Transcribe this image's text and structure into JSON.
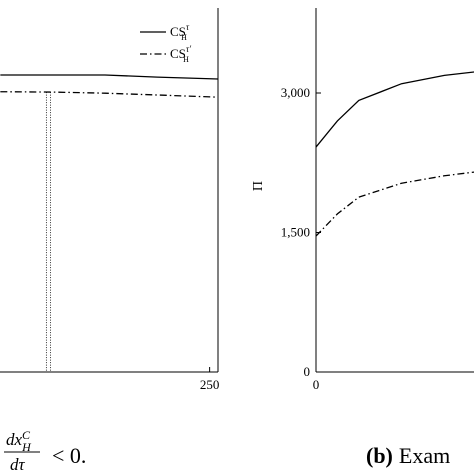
{
  "chart_data": [
    {
      "type": "line",
      "xlim": [
        0,
        258
      ],
      "ylim": [
        0,
        100
      ],
      "xticks": [
        250
      ],
      "legend": "upper right",
      "x": [
        50,
        100,
        150,
        200,
        258
      ],
      "series": [
        {
          "name": "CS",
          "subscript": "H",
          "superscript": "τ",
          "color": "#000000",
          "style": "solid",
          "values": [
            81.6,
            81.6,
            81.6,
            81.0,
            80.5
          ]
        },
        {
          "name": "CS",
          "subscript": "H",
          "superscript": "τ′",
          "color": "#000000",
          "style": "dashdot",
          "values": [
            77.0,
            76.9,
            76.6,
            76.1,
            75.5
          ]
        }
      ],
      "vlines": [
        94,
        98
      ]
    },
    {
      "type": "line",
      "ylabel": "Π",
      "xlim": [
        0,
        250
      ],
      "ylim": [
        0,
        3914
      ],
      "xticks": [
        0
      ],
      "yticks": [
        0,
        {
          "value": 1500,
          "label": "1,500"
        },
        {
          "value": 3000,
          "label": "3,000"
        }
      ],
      "x": [
        0,
        25,
        50,
        100,
        150,
        185
      ],
      "series": [
        {
          "color": "#000000",
          "style": "solid",
          "values": [
            2419,
            2700,
            2920,
            3100,
            3190,
            3226
          ]
        },
        {
          "color": "#000000",
          "style": "dashdot",
          "values": [
            1462,
            1700,
            1880,
            2030,
            2110,
            2150
          ]
        }
      ]
    }
  ],
  "captions": {
    "left": {
      "numerator": "dx",
      "numerator_sup": "C",
      "numerator_sub": "H",
      "denominator": "dτ",
      "rest": "< 0."
    },
    "right": {
      "label": "(b)",
      "text": "Exam"
    }
  }
}
